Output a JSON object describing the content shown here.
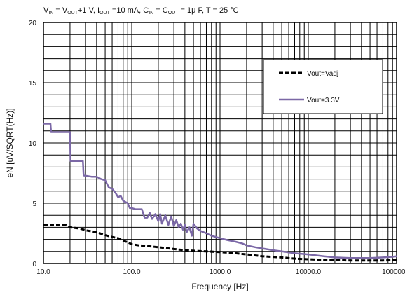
{
  "chart_data": {
    "type": "line",
    "title": {
      "segments": [
        {
          "t": "V"
        },
        {
          "t": "IN",
          "sub": true
        },
        {
          "t": " = V"
        },
        {
          "t": "OUT",
          "sub": true
        },
        {
          "t": "+1 V, I"
        },
        {
          "t": "OUT",
          "sub": true
        },
        {
          "t": " =10 mA, C"
        },
        {
          "t": "IN",
          "sub": true
        },
        {
          "t": " = C"
        },
        {
          "t": "OUT",
          "sub": true
        },
        {
          "t": " = 1μ F, T = 25 °C"
        }
      ]
    },
    "xlabel": "Frequency [Hz]",
    "ylabel": "eN [uV/SQRT(Hz)]",
    "x_scale": "log",
    "xlim": [
      10,
      100000
    ],
    "ylim": [
      0,
      20
    ],
    "x_ticks": [
      10,
      100,
      1000,
      10000,
      100000
    ],
    "x_tick_labels": [
      "10.0",
      "100.0",
      "1000.0",
      "10000.0",
      "100000.0"
    ],
    "y_ticks": [
      0,
      5,
      10,
      15,
      20
    ],
    "y_tick_labels": [
      "0",
      "5",
      "10",
      "15",
      "20"
    ],
    "grid": true,
    "legend_position": "top-right",
    "series": [
      {
        "name": "Vout=Vadj",
        "style": "dashed",
        "color": "#000000",
        "points": [
          [
            10,
            3.2
          ],
          [
            13,
            3.2
          ],
          [
            18,
            3.2
          ],
          [
            20,
            3.0
          ],
          [
            26,
            2.9
          ],
          [
            30,
            2.75
          ],
          [
            40,
            2.6
          ],
          [
            50,
            2.35
          ],
          [
            60,
            2.2
          ],
          [
            70,
            2.1
          ],
          [
            80,
            1.9
          ],
          [
            90,
            1.75
          ],
          [
            100,
            1.6
          ],
          [
            120,
            1.5
          ],
          [
            150,
            1.45
          ],
          [
            200,
            1.35
          ],
          [
            300,
            1.2
          ],
          [
            400,
            1.1
          ],
          [
            500,
            1.05
          ],
          [
            700,
            1.0
          ],
          [
            1000,
            0.95
          ],
          [
            1500,
            0.85
          ],
          [
            2000,
            0.75
          ],
          [
            3000,
            0.6
          ],
          [
            5000,
            0.5
          ],
          [
            7000,
            0.4
          ],
          [
            10000,
            0.35
          ],
          [
            15000,
            0.3
          ],
          [
            20000,
            0.28
          ],
          [
            30000,
            0.25
          ],
          [
            50000,
            0.25
          ],
          [
            70000,
            0.25
          ],
          [
            100000,
            0.28
          ]
        ]
      },
      {
        "name": "Vout=3.3V",
        "style": "solid",
        "color": "#7b68a6",
        "points": [
          [
            10,
            11.6
          ],
          [
            12,
            11.6
          ],
          [
            12.2,
            10.9
          ],
          [
            16,
            10.9
          ],
          [
            20,
            10.9
          ],
          [
            20.3,
            8.5
          ],
          [
            24,
            8.5
          ],
          [
            28,
            8.5
          ],
          [
            28.5,
            7.3
          ],
          [
            35,
            7.2
          ],
          [
            40,
            7.2
          ],
          [
            45,
            7.0
          ],
          [
            50,
            6.9
          ],
          [
            55,
            6.3
          ],
          [
            60,
            6.2
          ],
          [
            65,
            5.9
          ],
          [
            70,
            5.5
          ],
          [
            75,
            5.6
          ],
          [
            80,
            5.2
          ],
          [
            90,
            5.0
          ],
          [
            95,
            4.6
          ],
          [
            100,
            4.6
          ],
          [
            110,
            4.5
          ],
          [
            130,
            4.5
          ],
          [
            140,
            3.8
          ],
          [
            150,
            3.8
          ],
          [
            160,
            4.2
          ],
          [
            170,
            3.7
          ],
          [
            185,
            4.1
          ],
          [
            200,
            3.5
          ],
          [
            210,
            4.1
          ],
          [
            220,
            3.3
          ],
          [
            240,
            4.0
          ],
          [
            260,
            3.2
          ],
          [
            280,
            3.9
          ],
          [
            300,
            3.1
          ],
          [
            320,
            3.6
          ],
          [
            340,
            3.0
          ],
          [
            360,
            3.3
          ],
          [
            380,
            2.8
          ],
          [
            400,
            3.2
          ],
          [
            420,
            2.6
          ],
          [
            450,
            3.0
          ],
          [
            480,
            2.3
          ],
          [
            500,
            3.3
          ],
          [
            550,
            2.9
          ],
          [
            600,
            2.7
          ],
          [
            650,
            2.6
          ],
          [
            700,
            2.5
          ],
          [
            800,
            2.3
          ],
          [
            900,
            2.2
          ],
          [
            1000,
            2.1
          ],
          [
            1200,
            1.95
          ],
          [
            1500,
            1.8
          ],
          [
            1800,
            1.65
          ],
          [
            2000,
            1.5
          ],
          [
            2500,
            1.35
          ],
          [
            3000,
            1.25
          ],
          [
            4000,
            1.1
          ],
          [
            5000,
            1.0
          ],
          [
            7000,
            0.85
          ],
          [
            10000,
            0.75
          ],
          [
            15000,
            0.6
          ],
          [
            20000,
            0.5
          ],
          [
            30000,
            0.45
          ],
          [
            50000,
            0.45
          ],
          [
            70000,
            0.5
          ],
          [
            90000,
            0.55
          ],
          [
            100000,
            0.6
          ]
        ]
      }
    ]
  }
}
